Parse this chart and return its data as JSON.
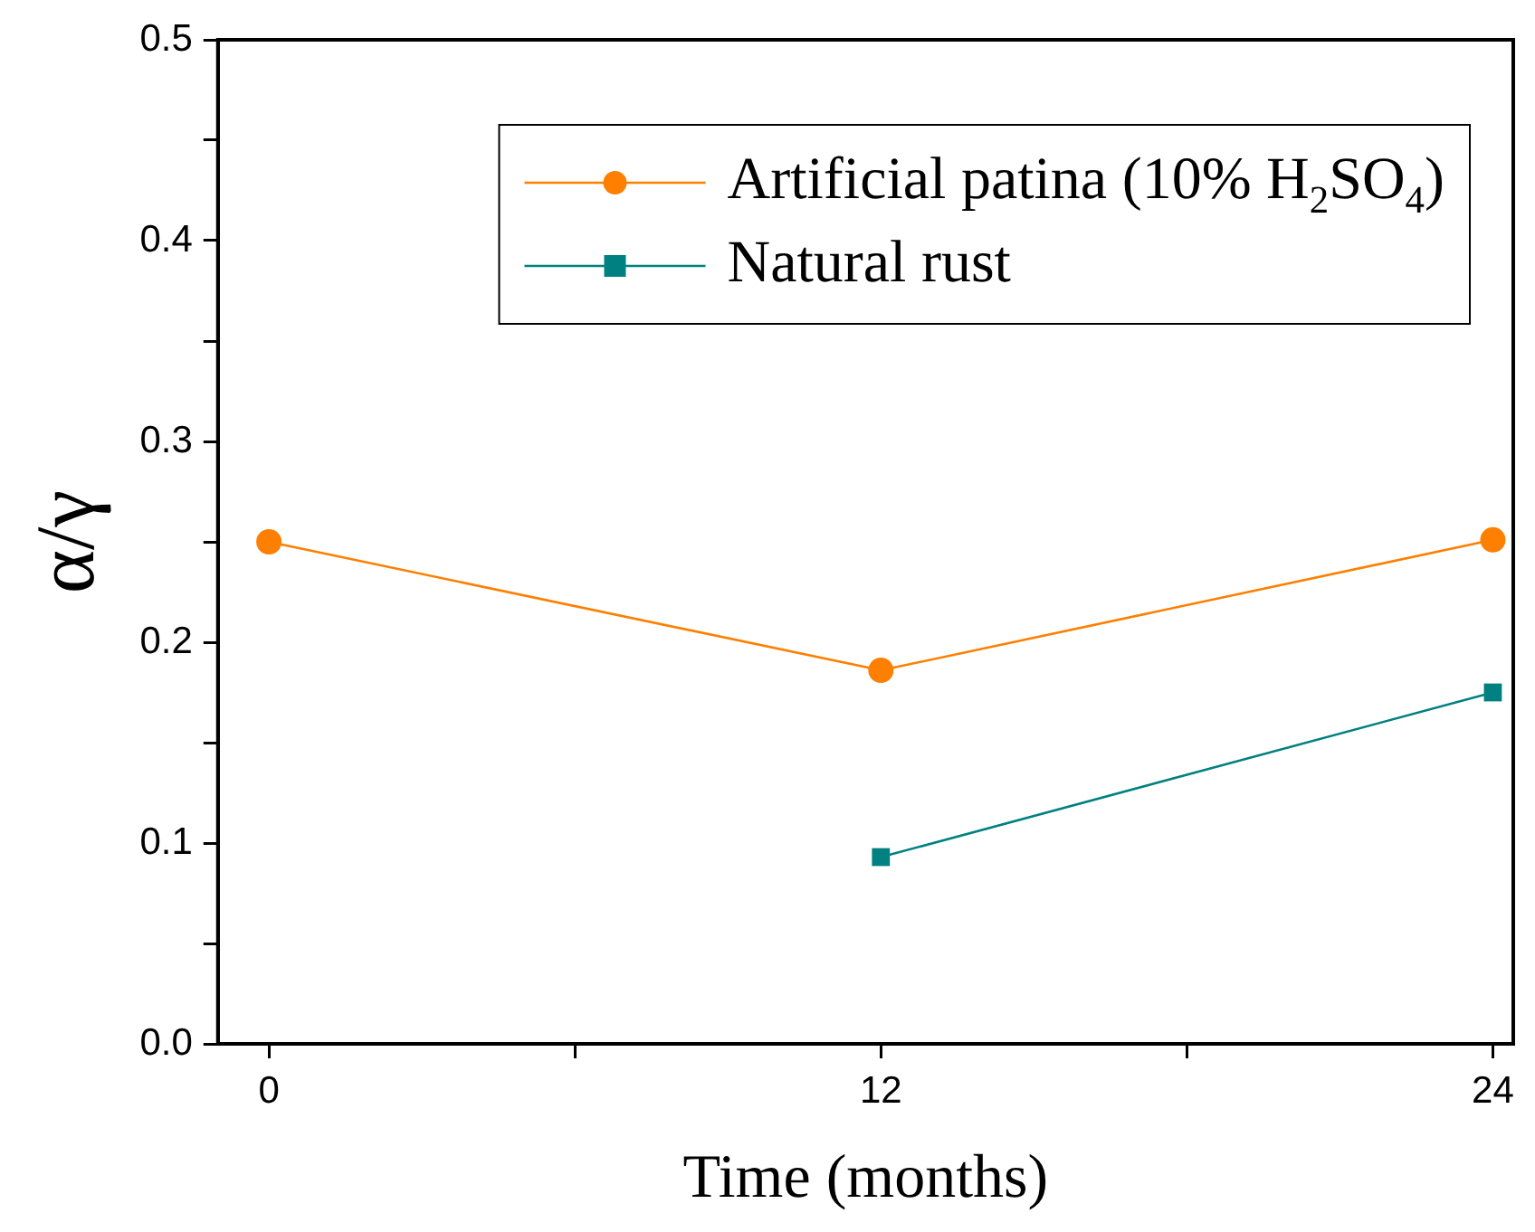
{
  "chart_data": {
    "type": "line",
    "xlabel": "Time (months)",
    "ylabel": "α/γ",
    "xlim": [
      -1,
      24.4
    ],
    "xticks": [
      0,
      {
        "value": 6,
        "label": null
      },
      12,
      {
        "value": 18,
        "label": null
      },
      24
    ],
    "ylim": [
      0,
      0.5
    ],
    "yticks": [
      {
        "value": 0,
        "label": "0.0"
      },
      {
        "value": 0.05,
        "label": null
      },
      0.1,
      {
        "value": 0.15,
        "label": null
      },
      0.2,
      {
        "value": 0.25,
        "label": null
      },
      0.3,
      {
        "value": 0.35,
        "label": null
      },
      0.4,
      {
        "value": 0.45,
        "label": null
      },
      0.5
    ],
    "grid": false,
    "legend": "top right",
    "line_style": "solid",
    "series": [
      {
        "name": "Artificial patina (10% H$_{2}$SO$_{4}$)",
        "color": "#ff7f00",
        "marker": "circle",
        "x": [
          0,
          12,
          24
        ],
        "values": [
          0.25,
          0.186,
          0.251
        ]
      },
      {
        "name": "Natural rust",
        "color": "#008080",
        "marker": "square",
        "x": [
          12,
          24
        ],
        "values": [
          0.093,
          0.175
        ]
      }
    ]
  }
}
